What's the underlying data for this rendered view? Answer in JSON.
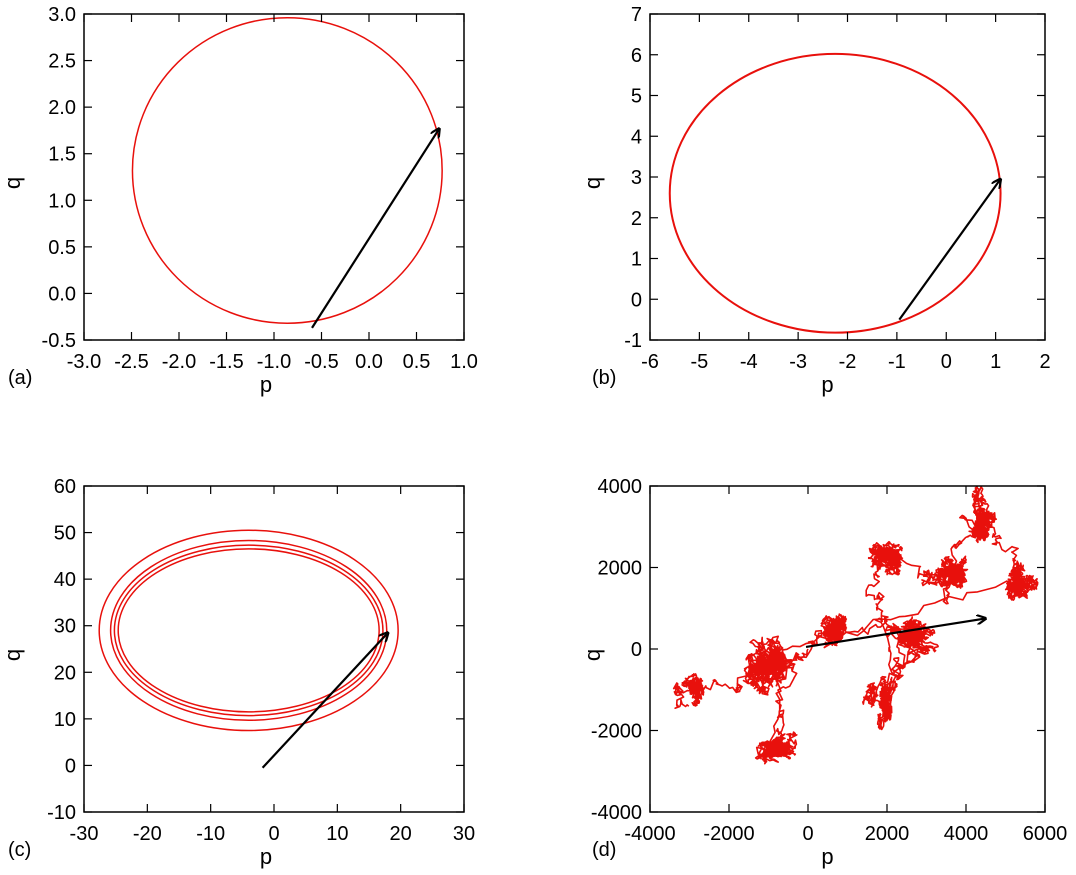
{
  "colors": {
    "trajectory": "#e8100c",
    "arrow": "#000000",
    "frame": "#000000"
  },
  "chart_data": [
    {
      "panel": "(a)",
      "type": "line",
      "xlabel": "p",
      "ylabel": "q",
      "xlim": [
        -3.0,
        1.0
      ],
      "ylim": [
        -0.5,
        3.0
      ],
      "xticks": [
        -3.0,
        -2.5,
        -2.0,
        -1.5,
        -1.0,
        -0.5,
        0.0,
        0.5,
        1.0
      ],
      "xtick_labels": [
        "-3.0",
        "-2.5",
        "-2.0",
        "-1.5",
        "-1.0",
        "-0.5",
        "0.0",
        "0.5",
        "1.0"
      ],
      "yticks": [
        -0.5,
        0.0,
        0.5,
        1.0,
        1.5,
        2.0,
        2.5,
        3.0
      ],
      "ytick_labels": [
        "-0.5",
        "0.0",
        "0.5",
        "1.0",
        "1.5",
        "2.0",
        "2.5",
        "3.0"
      ],
      "series": [
        {
          "kind": "ellipse",
          "center": [
            -0.86,
            1.32
          ],
          "radii": [
            1.63,
            1.64
          ]
        }
      ],
      "arrow": {
        "from": [
          -0.6,
          -0.37
        ],
        "to": [
          0.74,
          1.77
        ]
      }
    },
    {
      "panel": "(b)",
      "type": "line",
      "xlabel": "p",
      "ylabel": "q",
      "xlim": [
        -6,
        2
      ],
      "ylim": [
        -1,
        7
      ],
      "xticks": [
        -6,
        -5,
        -4,
        -3,
        -2,
        -1,
        0,
        1,
        2
      ],
      "xtick_labels": [
        "-6",
        "-5",
        "-4",
        "-3",
        "-2",
        "-1",
        "0",
        "1",
        "2"
      ],
      "yticks": [
        -1,
        0,
        1,
        2,
        3,
        4,
        5,
        6,
        7
      ],
      "ytick_labels": [
        "-1",
        "0",
        "1",
        "2",
        "3",
        "4",
        "5",
        "6",
        "7"
      ],
      "series": [
        {
          "kind": "ellipse",
          "center": [
            -2.25,
            2.6
          ],
          "radii": [
            3.35,
            3.42
          ]
        }
      ],
      "arrow": {
        "from": [
          -0.95,
          -0.5
        ],
        "to": [
          1.1,
          2.95
        ]
      }
    },
    {
      "panel": "(c)",
      "type": "line",
      "xlabel": "p",
      "ylabel": "q",
      "xlim": [
        -30,
        30
      ],
      "ylim": [
        -10,
        60
      ],
      "xticks": [
        -30,
        -20,
        -10,
        0,
        10,
        20,
        30
      ],
      "xtick_labels": [
        "-30",
        "-20",
        "-10",
        "0",
        "10",
        "20",
        "30"
      ],
      "yticks": [
        -10,
        0,
        10,
        20,
        30,
        40,
        50,
        60
      ],
      "ytick_labels": [
        "-10",
        "0",
        "10",
        "20",
        "30",
        "40",
        "50",
        "60"
      ],
      "series": [
        {
          "kind": "ellipse",
          "center": [
            -4,
            29
          ],
          "radii": [
            23.6,
            21.5
          ]
        },
        {
          "kind": "ellipse",
          "center": [
            -4,
            29
          ],
          "radii": [
            21.8,
            19.3
          ]
        },
        {
          "kind": "ellipse",
          "center": [
            -4,
            29
          ],
          "radii": [
            21.2,
            18.3
          ]
        },
        {
          "kind": "ellipse",
          "center": [
            -4,
            29
          ],
          "radii": [
            20.6,
            17.5
          ]
        }
      ],
      "arrow": {
        "from": [
          -1.8,
          -0.5
        ],
        "to": [
          18,
          28.5
        ]
      }
    },
    {
      "panel": "(d)",
      "type": "scatter",
      "xlabel": "p",
      "ylabel": "q",
      "xlim": [
        -4000,
        6000
      ],
      "ylim": [
        -4000,
        4000
      ],
      "xticks": [
        -4000,
        -2000,
        0,
        2000,
        4000,
        6000
      ],
      "xtick_labels": [
        "-4000",
        "-2000",
        "0",
        "2000",
        "4000",
        "6000"
      ],
      "yticks": [
        -4000,
        -2000,
        0,
        2000,
        4000
      ],
      "ytick_labels": [
        "-4000",
        "-2000",
        "0",
        "2000",
        "4000"
      ],
      "series": [
        {
          "kind": "random-walk",
          "start": [
            0,
            0
          ],
          "end": [
            4500,
            750
          ],
          "regions": [
            {
              "center": [
                -1000,
                -500
              ],
              "spread": [
                900,
                1100
              ]
            },
            {
              "center": [
                -700,
                -2400
              ],
              "spread": [
                700,
                400
              ]
            },
            {
              "center": [
                700,
                500
              ],
              "spread": [
                500,
                600
              ]
            },
            {
              "center": [
                2700,
                300
              ],
              "spread": [
                800,
                500
              ]
            },
            {
              "center": [
                2000,
                -1300
              ],
              "spread": [
                300,
                700
              ]
            },
            {
              "center": [
                2000,
                2300
              ],
              "spread": [
                500,
                500
              ]
            },
            {
              "center": [
                3700,
                1800
              ],
              "spread": [
                500,
                600
              ]
            },
            {
              "center": [
                4400,
                3200
              ],
              "spread": [
                400,
                600
              ]
            },
            {
              "center": [
                5400,
                1600
              ],
              "spread": [
                500,
                500
              ]
            },
            {
              "center": [
                -2800,
                -1000
              ],
              "spread": [
                300,
                300
              ]
            }
          ]
        }
      ],
      "arrow": {
        "from": [
          -50,
          50
        ],
        "to": [
          4500,
          750
        ]
      }
    }
  ]
}
